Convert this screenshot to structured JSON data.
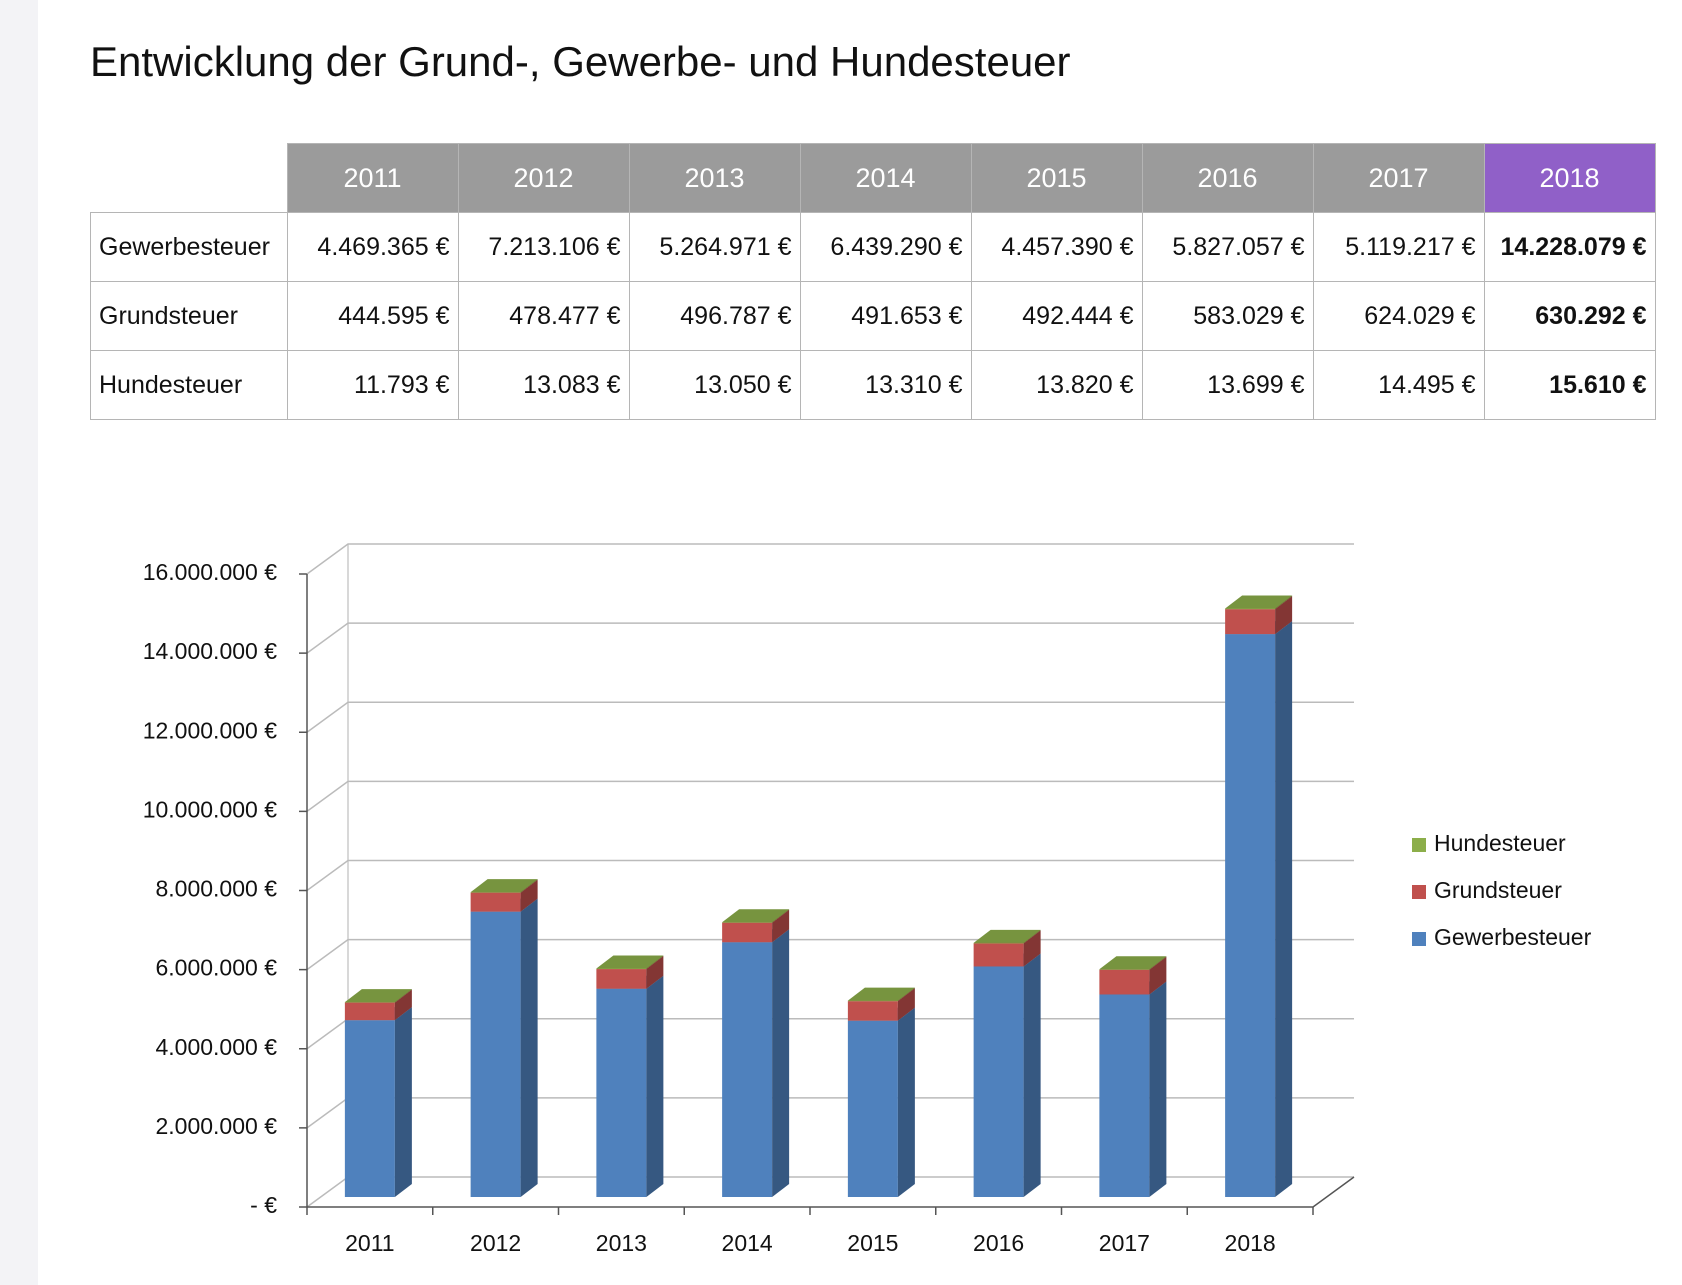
{
  "title": "Entwicklung der Grund-, Gewerbe- und Hundesteuer",
  "table": {
    "header": [
      "2011",
      "2012",
      "2013",
      "2014",
      "2015",
      "2016",
      "2017",
      "2018"
    ],
    "rows": [
      {
        "label": "Gewerbesteuer",
        "cells": [
          "4.469.365 €",
          "7.213.106 €",
          "5.264.971 €",
          "6.439.290 €",
          "4.457.390 €",
          "5.827.057 €",
          "5.119.217 €",
          "14.228.079 €"
        ]
      },
      {
        "label": "Grundsteuer",
        "cells": [
          "444.595 €",
          "478.477 €",
          "496.787 €",
          "491.653 €",
          "492.444 €",
          "583.029 €",
          "624.029 €",
          "630.292 €"
        ]
      },
      {
        "label": "Hundesteuer",
        "cells": [
          "11.793 €",
          "13.083 €",
          "13.050 €",
          "13.310 €",
          "13.820 €",
          "13.699 €",
          "14.495 €",
          "15.610 €"
        ]
      }
    ]
  },
  "chart_data": {
    "type": "stacked-bar-3d",
    "categories": [
      "2011",
      "2012",
      "2013",
      "2014",
      "2015",
      "2016",
      "2017",
      "2018"
    ],
    "series": [
      {
        "name": "Gewerbesteuer",
        "color": "#4f81bd",
        "values": [
          4469365,
          7213106,
          5264971,
          6439290,
          4457390,
          5827057,
          5119217,
          14228079
        ]
      },
      {
        "name": "Grundsteuer",
        "color": "#c0504d",
        "values": [
          444595,
          478477,
          496787,
          491653,
          492444,
          583029,
          624029,
          630292
        ]
      },
      {
        "name": "Hundesteuer",
        "color": "#8cae4a",
        "values": [
          11793,
          13083,
          13050,
          13310,
          13820,
          13699,
          14495,
          15610
        ]
      }
    ],
    "ylim": [
      0,
      16000000
    ],
    "yticks": [
      {
        "value": 0,
        "label": "- €"
      },
      {
        "value": 2000000,
        "label": "2.000.000 €"
      },
      {
        "value": 4000000,
        "label": "4.000.000 €"
      },
      {
        "value": 6000000,
        "label": "6.000.000 €"
      },
      {
        "value": 8000000,
        "label": "8.000.000 €"
      },
      {
        "value": 10000000,
        "label": "10.000.000 €"
      },
      {
        "value": 12000000,
        "label": "12.000.000 €"
      },
      {
        "value": 14000000,
        "label": "14.000.000 €"
      },
      {
        "value": 16000000,
        "label": "16.000.000 €"
      }
    ],
    "grid": true,
    "legend": "right"
  }
}
